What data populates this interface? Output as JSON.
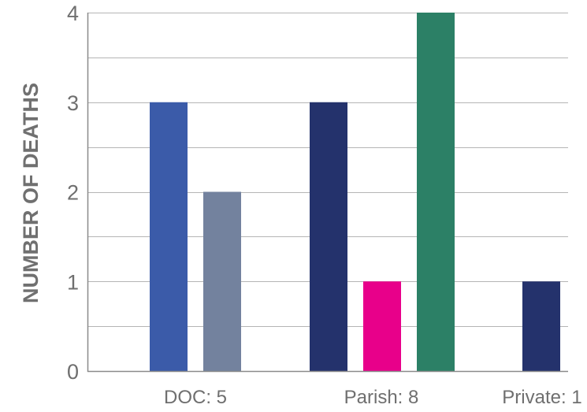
{
  "chart_data": {
    "type": "bar",
    "title": "",
    "xlabel": "",
    "ylabel": "NUMBER OF DEATHS",
    "ylim": [
      0,
      4
    ],
    "yticks": [
      "0",
      "1",
      "2",
      "3",
      "4"
    ],
    "grid": true,
    "legend": "none",
    "categories": [
      "DOC: 5",
      "Parish: 8",
      "Private: 1"
    ],
    "bars": [
      {
        "category": "DOC: 5",
        "value": 3,
        "color": "#3b5ba9"
      },
      {
        "category": "DOC: 5",
        "value": 2,
        "color": "#73829e"
      },
      {
        "category": "Parish: 8",
        "value": 3,
        "color": "#24326c"
      },
      {
        "category": "Parish: 8",
        "value": 1,
        "color": "#e8008a"
      },
      {
        "category": "Parish: 8",
        "value": 4,
        "color": "#2c8066"
      },
      {
        "category": "Private: 1",
        "value": 1,
        "color": "#24326c"
      }
    ]
  }
}
